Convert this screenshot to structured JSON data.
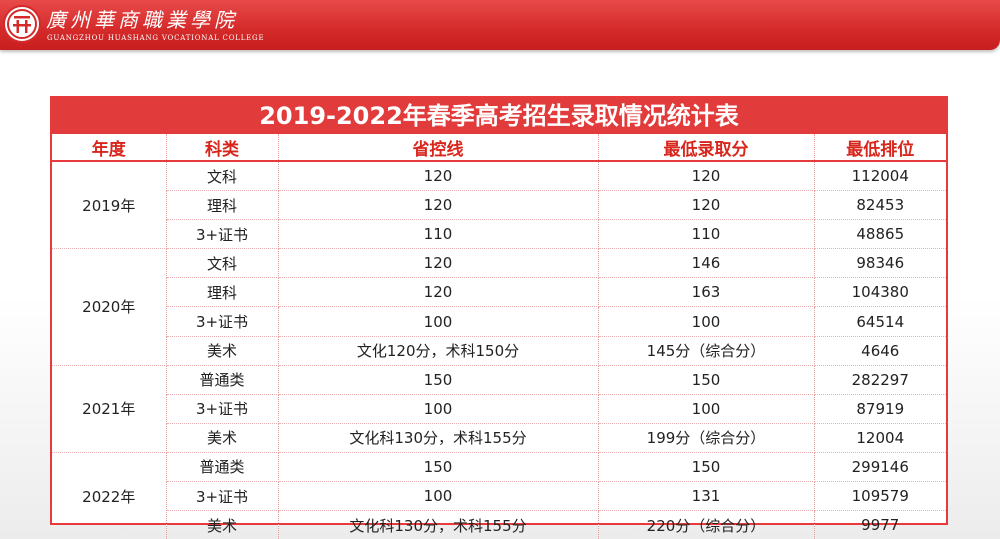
{
  "header": {
    "school_cn": "廣州華商職業學院",
    "school_en": "GUANGZHOU HUASHANG VOCATIONAL COLLEGE",
    "brand_color": "#d42a2a"
  },
  "table": {
    "title": "2019-2022年春季高考招生录取情况统计表",
    "columns": [
      "年度",
      "科类",
      "省控线",
      "最低录取分",
      "最低排位"
    ],
    "groups": [
      {
        "year": "2019年",
        "rows": [
          [
            "文科",
            "120",
            "120",
            "112004"
          ],
          [
            "理科",
            "120",
            "120",
            "82453"
          ],
          [
            "3+证书",
            "110",
            "110",
            "48865"
          ]
        ]
      },
      {
        "year": "2020年",
        "rows": [
          [
            "文科",
            "120",
            "146",
            "98346"
          ],
          [
            "理科",
            "120",
            "163",
            "104380"
          ],
          [
            "3+证书",
            "100",
            "100",
            "64514"
          ],
          [
            "美术",
            "文化120分，术科150分",
            "145分（综合分）",
            "4646"
          ]
        ]
      },
      {
        "year": "2021年",
        "rows": [
          [
            "普通类",
            "150",
            "150",
            "282297"
          ],
          [
            "3+证书",
            "100",
            "100",
            "87919"
          ],
          [
            "美术",
            "文化科130分，术科155分",
            "199分（综合分）",
            "12004"
          ]
        ]
      },
      {
        "year": "2022年",
        "rows": [
          [
            "普通类",
            "150",
            "150",
            "299146"
          ],
          [
            "3+证书",
            "100",
            "131",
            "109579"
          ],
          [
            "美术",
            "文化科130分，术科155分",
            "220分（综合分）",
            "9977"
          ]
        ]
      }
    ]
  }
}
